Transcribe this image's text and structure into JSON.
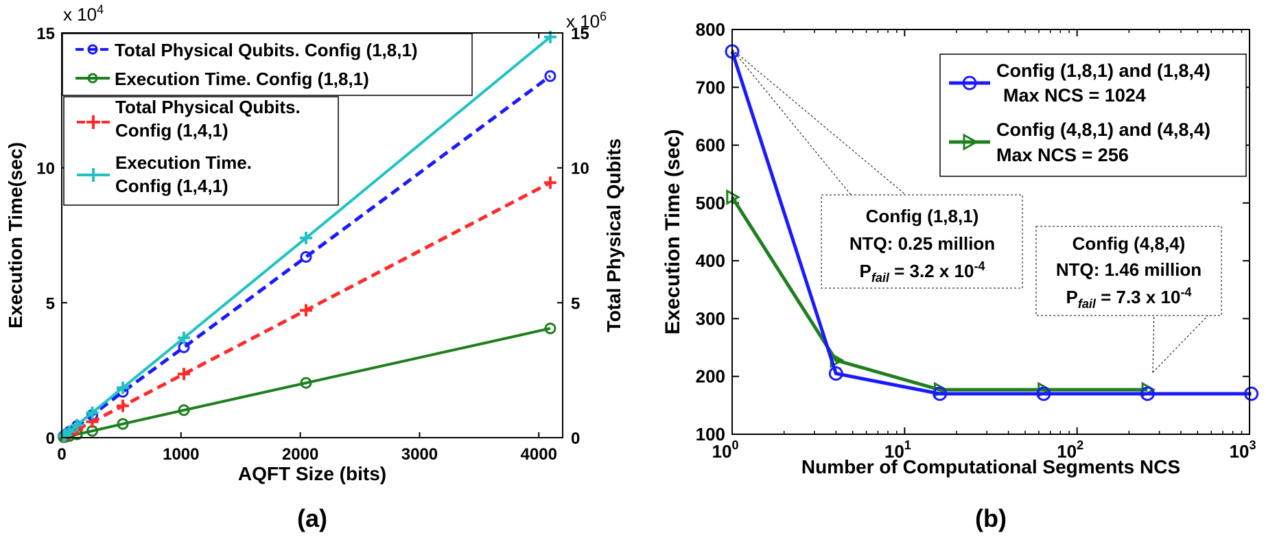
{
  "colors": {
    "blue": "#1a1aff",
    "green": "#1f7f1f",
    "red": "#ff2a2a",
    "cyan": "#1fc3c3",
    "axis": "#000000"
  },
  "chart_data": [
    {
      "type": "line",
      "panel_label": "(a)",
      "xlabel": "AQFT Size (bits)",
      "ylabel_left": "Execution Time(sec)",
      "ylabel_right": "Total Physical Qubits",
      "left_exponent": "x 10",
      "left_exponent_power": "4",
      "right_exponent": "x 10",
      "right_exponent_power": "6",
      "xlim": [
        0,
        4200
      ],
      "ylim_left": [
        0,
        150000
      ],
      "ylim_right": [
        0,
        15000000
      ],
      "xticks": [
        "0",
        "1000",
        "2000",
        "3000",
        "4000"
      ],
      "yticks_left": [
        "0",
        "5",
        "10",
        "15"
      ],
      "yticks_right": [
        "0",
        "5",
        "10",
        "15"
      ],
      "legend_location": "top-left",
      "series": [
        {
          "name": "Total Physical Qubits. Config (1,8,1)",
          "axis": "right",
          "color": "blue",
          "dash": true,
          "marker": "circle",
          "x": [
            16,
            32,
            64,
            128,
            256,
            512,
            1024,
            2048,
            4096
          ],
          "y": [
            55000,
            110000,
            220000,
            430000,
            840000,
            1700000,
            3350000,
            6700000,
            13400000
          ]
        },
        {
          "name": "Execution Time. Config (1,8,1)",
          "axis": "left",
          "color": "green",
          "dash": false,
          "marker": "circle",
          "x": [
            16,
            32,
            64,
            128,
            256,
            512,
            1024,
            2048,
            4096
          ],
          "y": [
            150,
            300,
            620,
            1250,
            2500,
            5100,
            10200,
            20300,
            40500
          ]
        },
        {
          "name": "Total Physical Qubits.\nConfig (1,4,1)",
          "axis": "right",
          "color": "red",
          "dash": true,
          "marker": "plus",
          "x": [
            16,
            32,
            64,
            128,
            256,
            512,
            1024,
            2048,
            4096
          ],
          "y": [
            38000,
            75000,
            150000,
            300000,
            590000,
            1180000,
            2360000,
            4720000,
            9450000
          ]
        },
        {
          "name": "Execution Time.\nConfig (1,4,1)",
          "axis": "left",
          "color": "cyan",
          "dash": false,
          "marker": "plus",
          "x": [
            16,
            32,
            64,
            128,
            256,
            512,
            1024,
            2048,
            4096
          ],
          "y": [
            580,
            1160,
            2320,
            4640,
            9250,
            18500,
            37000,
            74000,
            148500
          ]
        }
      ]
    },
    {
      "type": "line",
      "panel_label": "(b)",
      "xlabel": "Number of Computational Segments NCS",
      "ylabel": "Execution Time (sec)",
      "xscale": "log",
      "xlim": [
        1,
        1000
      ],
      "ylim": [
        100,
        800
      ],
      "xticks": [
        {
          "base": "10",
          "exp": "0"
        },
        {
          "base": "10",
          "exp": "1"
        },
        {
          "base": "10",
          "exp": "2"
        },
        {
          "base": "10",
          "exp": "3"
        }
      ],
      "yticks": [
        "100",
        "200",
        "300",
        "400",
        "500",
        "600",
        "700",
        "800"
      ],
      "legend_location": "top-right",
      "series": [
        {
          "name": "Config (1,8,1) and (1,8,4)",
          "name_line2": "Max NCS = 1024",
          "color": "blue",
          "marker": "circle",
          "x": [
            1,
            4,
            16,
            64,
            256,
            1024
          ],
          "y": [
            762,
            205,
            170,
            170,
            170,
            170
          ]
        },
        {
          "name": "Config (4,8,1) and (4,8,4)",
          "name_line2": "Max NCS = 256",
          "color": "green",
          "marker": "triangle-right",
          "x": [
            1,
            4,
            16,
            64,
            256
          ],
          "y": [
            510,
            228,
            177,
            177,
            177
          ]
        }
      ],
      "annotations": [
        {
          "line1": "Config (1,8,1)",
          "line2": "NTQ: 0.25 million",
          "pfail_prefix": "P",
          "pfail_sub": "fail",
          "pfail_value": " = 3.2 x 10",
          "pfail_exp": "-4"
        },
        {
          "line1": "Config (4,8,4)",
          "line2": "NTQ: 1.46 million",
          "pfail_prefix": "P",
          "pfail_sub": "fail",
          "pfail_value": " = 7.3 x 10",
          "pfail_exp": "-4"
        }
      ]
    }
  ]
}
